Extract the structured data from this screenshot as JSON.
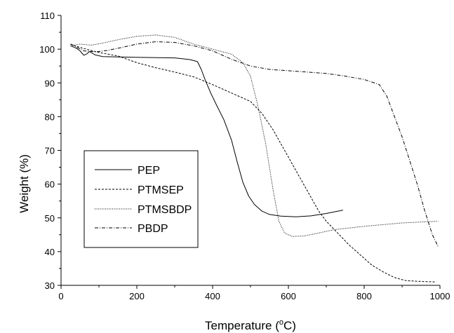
{
  "chart_data": {
    "type": "line",
    "xlabel": "Temperature (°C)",
    "xlabel_parts": {
      "prefix": "Temperature (",
      "sup": "o",
      "suffix": "C)"
    },
    "ylabel": "Weight (%)",
    "xlim": [
      0,
      1000
    ],
    "ylim": [
      30,
      110
    ],
    "x_ticks": [
      0,
      200,
      400,
      600,
      800,
      1000
    ],
    "y_ticks": [
      30,
      40,
      50,
      60,
      70,
      80,
      90,
      100,
      110
    ],
    "grid": false,
    "legend_position": "lower-left inside plot",
    "series": [
      {
        "name": "PEP",
        "dash": "solid",
        "points": [
          [
            25,
            101
          ],
          [
            40,
            100.3
          ],
          [
            50,
            99.5
          ],
          [
            60,
            98.2
          ],
          [
            68,
            98.6
          ],
          [
            75,
            99.3
          ],
          [
            90,
            98.3
          ],
          [
            110,
            97.8
          ],
          [
            200,
            97.6
          ],
          [
            300,
            97.4
          ],
          [
            340,
            96.9
          ],
          [
            360,
            96.3
          ],
          [
            370,
            94
          ],
          [
            380,
            91
          ],
          [
            395,
            87
          ],
          [
            410,
            83.5
          ],
          [
            430,
            79
          ],
          [
            450,
            73
          ],
          [
            465,
            66.5
          ],
          [
            480,
            60.5
          ],
          [
            495,
            56.5
          ],
          [
            510,
            54
          ],
          [
            530,
            52
          ],
          [
            550,
            51
          ],
          [
            580,
            50.5
          ],
          [
            620,
            50.3
          ],
          [
            660,
            50.6
          ],
          [
            700,
            51.3
          ],
          [
            744,
            52.3
          ]
        ]
      },
      {
        "name": "PTMSEP",
        "dash": "dashed",
        "points": [
          [
            25,
            101.5
          ],
          [
            50,
            100.5
          ],
          [
            100,
            99
          ],
          [
            150,
            98
          ],
          [
            200,
            96
          ],
          [
            250,
            94.5
          ],
          [
            300,
            93.2
          ],
          [
            350,
            91.8
          ],
          [
            400,
            89.5
          ],
          [
            430,
            88
          ],
          [
            460,
            86.5
          ],
          [
            500,
            84.5
          ],
          [
            530,
            81
          ],
          [
            560,
            76
          ],
          [
            590,
            70
          ],
          [
            620,
            64
          ],
          [
            650,
            58
          ],
          [
            680,
            52
          ],
          [
            700,
            49
          ],
          [
            730,
            45.5
          ],
          [
            760,
            42
          ],
          [
            790,
            39
          ],
          [
            820,
            36
          ],
          [
            850,
            34
          ],
          [
            880,
            32.3
          ],
          [
            910,
            31.4
          ],
          [
            940,
            31.2
          ],
          [
            990,
            31
          ]
        ]
      },
      {
        "name": "PTMSBDP",
        "dash": "dotted",
        "points": [
          [
            25,
            101
          ],
          [
            50,
            101.5
          ],
          [
            80,
            101.2
          ],
          [
            110,
            101.8
          ],
          [
            150,
            102.8
          ],
          [
            200,
            103.8
          ],
          [
            250,
            104.2
          ],
          [
            300,
            103.5
          ],
          [
            350,
            101.5
          ],
          [
            400,
            100
          ],
          [
            450,
            98.5
          ],
          [
            480,
            96
          ],
          [
            500,
            92
          ],
          [
            520,
            83
          ],
          [
            540,
            72
          ],
          [
            560,
            58
          ],
          [
            575,
            49
          ],
          [
            590,
            45.5
          ],
          [
            610,
            44.5
          ],
          [
            640,
            44.6
          ],
          [
            680,
            45.5
          ],
          [
            720,
            46.5
          ],
          [
            800,
            47.5
          ],
          [
            900,
            48.5
          ],
          [
            995,
            49
          ]
        ]
      },
      {
        "name": "PBDP",
        "dash": "dash-dot",
        "points": [
          [
            25,
            101.5
          ],
          [
            60,
            99.5
          ],
          [
            90,
            99.2
          ],
          [
            120,
            99.6
          ],
          [
            160,
            100.5
          ],
          [
            200,
            101.5
          ],
          [
            250,
            102.2
          ],
          [
            300,
            102
          ],
          [
            350,
            101
          ],
          [
            400,
            99.5
          ],
          [
            450,
            97
          ],
          [
            500,
            95
          ],
          [
            550,
            94
          ],
          [
            600,
            93.6
          ],
          [
            650,
            93.2
          ],
          [
            700,
            92.8
          ],
          [
            750,
            92
          ],
          [
            800,
            91
          ],
          [
            840,
            89.5
          ],
          [
            860,
            86
          ],
          [
            880,
            80
          ],
          [
            900,
            74
          ],
          [
            920,
            67
          ],
          [
            940,
            60
          ],
          [
            960,
            52
          ],
          [
            980,
            45
          ],
          [
            995,
            41.5
          ]
        ]
      }
    ]
  }
}
